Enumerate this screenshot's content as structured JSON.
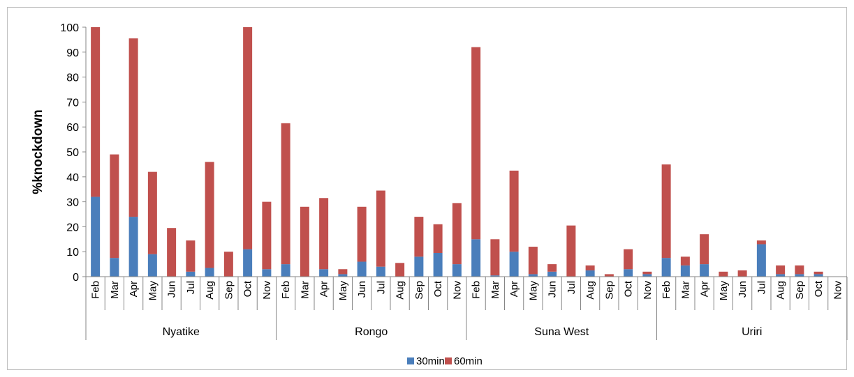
{
  "chart_data": {
    "type": "bar",
    "stacked": true,
    "ylabel": "%knockdown",
    "xlabel": "",
    "ylim": [
      0,
      100
    ],
    "yticks": [
      0,
      10,
      20,
      30,
      40,
      50,
      60,
      70,
      80,
      90,
      100
    ],
    "grid": false,
    "legend_position": "bottom",
    "groups": [
      {
        "name": "Nyatike",
        "categories": [
          "Feb",
          "Mar",
          "Apr",
          "May",
          "Jun",
          "Jul",
          "Aug",
          "Sep",
          "Oct",
          "Nov"
        ]
      },
      {
        "name": "Rongo",
        "categories": [
          "Feb",
          "Mar",
          "Apr",
          "May",
          "Jun",
          "Jul",
          "Aug",
          "Sep",
          "Oct",
          "Nov"
        ]
      },
      {
        "name": "Suna West",
        "categories": [
          "Feb",
          "Mar",
          "Apr",
          "May",
          "Jun",
          "Jul",
          "Aug",
          "Sep",
          "Oct",
          "Nov"
        ]
      },
      {
        "name": "Uriri",
        "categories": [
          "Feb",
          "Mar",
          "Apr",
          "May",
          "Jun",
          "Jul",
          "Aug",
          "Sep",
          "Oct",
          "Nov"
        ]
      }
    ],
    "series": [
      {
        "name": "30min",
        "color": "#4a7ebb",
        "values": [
          32,
          7.5,
          24,
          9,
          0,
          2,
          3.5,
          0,
          11,
          3,
          5,
          0,
          3,
          1,
          6,
          4,
          0,
          8,
          9.5,
          5,
          15,
          0.5,
          10,
          1,
          2,
          0,
          2.5,
          0,
          3,
          1,
          7.5,
          4.5,
          5,
          0,
          0,
          13,
          1,
          1,
          1,
          0
        ]
      },
      {
        "name": "60min",
        "color": "#c0504d",
        "values": [
          68,
          41.5,
          71.5,
          33,
          19.5,
          12.5,
          42.5,
          10,
          89,
          27,
          56.5,
          28,
          28.5,
          2,
          22,
          30.5,
          5.5,
          16,
          11.5,
          24.5,
          77,
          14.5,
          32.5,
          11,
          3,
          20.5,
          2,
          1,
          8,
          1,
          37.5,
          3.5,
          12,
          2,
          2.5,
          1.5,
          3.5,
          3.5,
          1,
          0
        ]
      }
    ]
  }
}
